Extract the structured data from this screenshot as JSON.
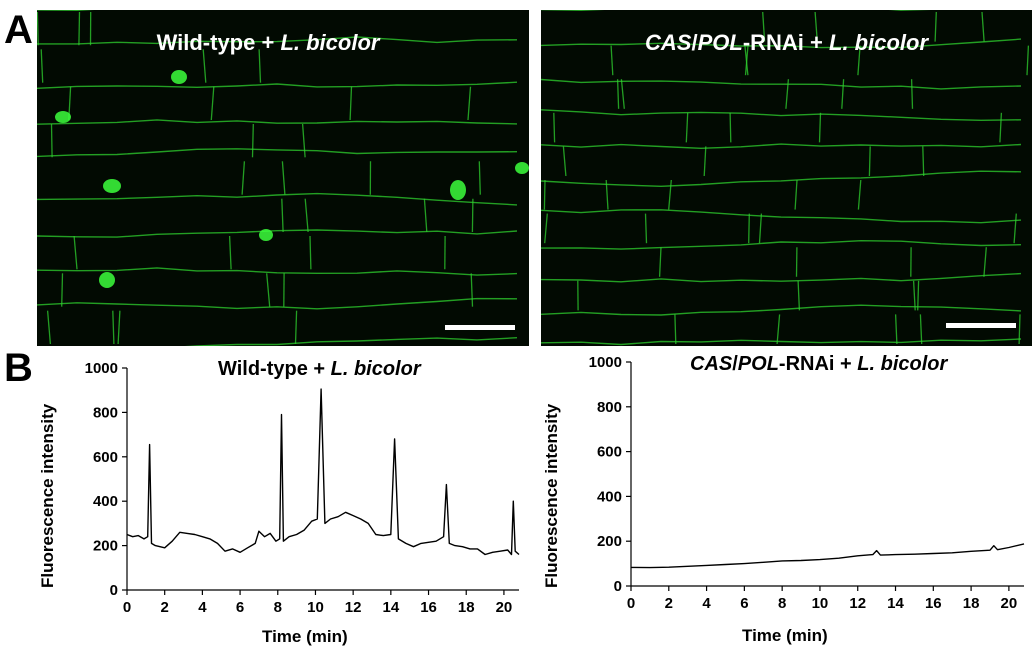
{
  "panel_labels": {
    "a": "A",
    "b": "B"
  },
  "micrographs": [
    {
      "title_plain": "Wild-type + ",
      "title_italic": "L. bicolor",
      "title_italic_prefix": ""
    },
    {
      "title_italic_prefix": "CAS",
      "title_plain": "/",
      "title_italic_mid": "POL",
      "title_suffix": "-RNAi + ",
      "title_italic": "L. bicolor"
    }
  ],
  "colors": {
    "background": "#020a02",
    "fluorescence": "#2fd12f",
    "nucleus": "#3cff3c",
    "trace": "#000000"
  },
  "chart_data": [
    {
      "type": "line",
      "title": "Wild-type + L. bicolor",
      "xlabel": "Time (min)",
      "ylabel": "Fluorescence  intensity",
      "xlim": [
        0,
        20.8
      ],
      "ylim": [
        0,
        1000
      ],
      "xticks": [
        0,
        2,
        4,
        6,
        8,
        10,
        12,
        14,
        16,
        18,
        20
      ],
      "yticks": [
        0,
        200,
        400,
        600,
        800,
        1000
      ],
      "series": [
        {
          "x": [
            0,
            0.3,
            0.6,
            0.9,
            1.1,
            1.2,
            1.3,
            1.5,
            2.0,
            2.4,
            2.8,
            3.2,
            3.6,
            4.0,
            4.4,
            4.8,
            5.2,
            5.6,
            6.0,
            6.4,
            6.8,
            7.0,
            7.3,
            7.6,
            7.9,
            8.1,
            8.2,
            8.3,
            8.6,
            9.0,
            9.4,
            9.8,
            10.1,
            10.3,
            10.5,
            10.8,
            11.2,
            11.6,
            12.0,
            12.4,
            12.8,
            13.2,
            13.6,
            14.0,
            14.2,
            14.4,
            14.8,
            15.2,
            15.6,
            16.0,
            16.4,
            16.8,
            16.95,
            17.1,
            17.4,
            17.8,
            18.2,
            18.6,
            19.0,
            19.4,
            19.8,
            20.2,
            20.4,
            20.5,
            20.6,
            20.8
          ],
          "y": [
            250,
            240,
            245,
            230,
            240,
            655,
            210,
            200,
            190,
            220,
            260,
            255,
            250,
            240,
            230,
            210,
            175,
            185,
            170,
            190,
            210,
            265,
            240,
            255,
            220,
            230,
            790,
            220,
            240,
            250,
            270,
            310,
            320,
            905,
            300,
            320,
            330,
            350,
            335,
            320,
            300,
            250,
            245,
            250,
            680,
            230,
            210,
            195,
            210,
            215,
            220,
            240,
            475,
            210,
            200,
            195,
            185,
            185,
            160,
            170,
            175,
            180,
            160,
            400,
            175,
            160
          ]
        }
      ]
    },
    {
      "type": "line",
      "title": "CAS/POL-RNAi + L. bicolor",
      "xlabel": "Time (min)",
      "ylabel": "Fluorescence  intensity",
      "xlim": [
        0,
        20.8
      ],
      "ylim": [
        0,
        1000
      ],
      "xticks": [
        0,
        2,
        4,
        6,
        8,
        10,
        12,
        14,
        16,
        18,
        20
      ],
      "yticks": [
        0,
        200,
        400,
        600,
        800,
        1000
      ],
      "series": [
        {
          "x": [
            0,
            1,
            2,
            3,
            4,
            5,
            6,
            7,
            8,
            9,
            10,
            11,
            12,
            12.8,
            13.0,
            13.2,
            14,
            15,
            16,
            17,
            18,
            19,
            19.2,
            19.4,
            20,
            20.8
          ],
          "y": [
            83,
            82,
            84,
            88,
            92,
            96,
            100,
            106,
            112,
            114,
            118,
            124,
            135,
            140,
            158,
            138,
            140,
            142,
            145,
            148,
            155,
            160,
            180,
            162,
            172,
            188
          ]
        }
      ]
    }
  ],
  "chart_titles": [
    {
      "plain": "Wild-type + ",
      "italic": "L. bicolor"
    },
    {
      "italic_a": "CAS",
      "sep": "/",
      "italic_b": "POL",
      "plain": "-RNAi + ",
      "italic": "L. bicolor"
    }
  ]
}
